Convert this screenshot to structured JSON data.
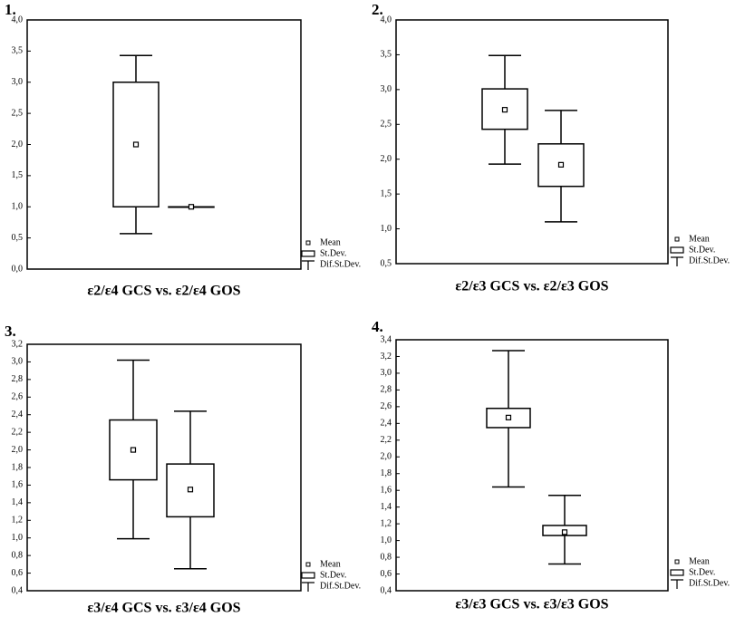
{
  "chart_data": [
    {
      "type": "box",
      "title": "1.",
      "xlabel": "ε2/ε4 GCS vs. ε2/ε4 GOS",
      "legend": [
        "Mean",
        "St.Dev.",
        "Dif.St.Dev."
      ],
      "ylim": [
        0,
        4
      ],
      "yticks": [
        {
          "value": 0,
          "label": "0,0"
        },
        {
          "value": 0.5,
          "label": "0,5"
        },
        {
          "value": 1,
          "label": "1,0"
        },
        {
          "value": 1.5,
          "label": "1,5"
        },
        {
          "value": 2,
          "label": "2,0"
        },
        {
          "value": 2.5,
          "label": "2,5"
        },
        {
          "value": 3,
          "label": "3,0"
        },
        {
          "value": 3.5,
          "label": "3,5"
        },
        {
          "value": 4,
          "label": "4,0"
        }
      ],
      "boxes": [
        {
          "mean": 2.0,
          "sd_low": 1.0,
          "sd_high": 3.0,
          "whisker_low": 0.57,
          "whisker_high": 3.43
        },
        {
          "mean": 1.0,
          "sd_low": 1.0,
          "sd_high": 1.0,
          "whisker_low": 1.0,
          "whisker_high": 1.0
        }
      ]
    },
    {
      "type": "box",
      "title": "2.",
      "xlabel": "ε2/ε3 GCS vs. ε2/ε3 GOS",
      "legend": [
        "Mean",
        "St.Dev.",
        "Dif.St.Dev."
      ],
      "ylim": [
        0.5,
        4
      ],
      "yticks": [
        {
          "value": 0.5,
          "label": "0,5"
        },
        {
          "value": 1,
          "label": "1,0"
        },
        {
          "value": 1.5,
          "label": "1,5"
        },
        {
          "value": 2,
          "label": "2,0"
        },
        {
          "value": 2.5,
          "label": "2,5"
        },
        {
          "value": 3,
          "label": "3,0"
        },
        {
          "value": 3.5,
          "label": "3,5"
        },
        {
          "value": 4,
          "label": "4,0"
        }
      ],
      "boxes": [
        {
          "mean": 2.71,
          "sd_low": 2.43,
          "sd_high": 3.01,
          "whisker_low": 1.93,
          "whisker_high": 3.49
        },
        {
          "mean": 1.92,
          "sd_low": 1.61,
          "sd_high": 2.22,
          "whisker_low": 1.1,
          "whisker_high": 2.7
        }
      ]
    },
    {
      "type": "box",
      "title": "3.",
      "xlabel": "ε3/ε4 GCS vs. ε3/ε4 GOS",
      "legend": [
        "Mean",
        "St.Dev.",
        "Dif.St.Dev."
      ],
      "ylim": [
        0.4,
        3.2
      ],
      "yticks": [
        {
          "value": 0.4,
          "label": "0,4"
        },
        {
          "value": 0.6,
          "label": "0,6"
        },
        {
          "value": 0.8,
          "label": "0,8"
        },
        {
          "value": 1.0,
          "label": "1,0"
        },
        {
          "value": 1.2,
          "label": "1,2"
        },
        {
          "value": 1.4,
          "label": "1,4"
        },
        {
          "value": 1.6,
          "label": "1,6"
        },
        {
          "value": 1.8,
          "label": "1,8"
        },
        {
          "value": 2.0,
          "label": "2,0"
        },
        {
          "value": 2.2,
          "label": "2,2"
        },
        {
          "value": 2.4,
          "label": "2,4"
        },
        {
          "value": 2.6,
          "label": "2,6"
        },
        {
          "value": 2.8,
          "label": "2,8"
        },
        {
          "value": 3.0,
          "label": "3,0"
        },
        {
          "value": 3.2,
          "label": "3,2"
        }
      ],
      "boxes": [
        {
          "mean": 2.0,
          "sd_low": 1.66,
          "sd_high": 2.34,
          "whisker_low": 0.99,
          "whisker_high": 3.02
        },
        {
          "mean": 1.55,
          "sd_low": 1.24,
          "sd_high": 1.84,
          "whisker_low": 0.65,
          "whisker_high": 2.44
        }
      ]
    },
    {
      "type": "box",
      "title": "4.",
      "xlabel": "ε3/ε3 GCS vs. ε3/ε3 GOS",
      "legend": [
        "Mean",
        "St.Dev.",
        "Dif.St.Dev."
      ],
      "ylim": [
        0.4,
        3.4
      ],
      "yticks": [
        {
          "value": 0.4,
          "label": "0,4"
        },
        {
          "value": 0.6,
          "label": "0,6"
        },
        {
          "value": 0.8,
          "label": "0,8"
        },
        {
          "value": 1.0,
          "label": "1,0"
        },
        {
          "value": 1.2,
          "label": "1,2"
        },
        {
          "value": 1.4,
          "label": "1,4"
        },
        {
          "value": 1.6,
          "label": "1,6"
        },
        {
          "value": 1.8,
          "label": "1,8"
        },
        {
          "value": 2.0,
          "label": "2,0"
        },
        {
          "value": 2.2,
          "label": "2,2"
        },
        {
          "value": 2.4,
          "label": "2,4"
        },
        {
          "value": 2.6,
          "label": "2,6"
        },
        {
          "value": 2.8,
          "label": "2,8"
        },
        {
          "value": 3.0,
          "label": "3,0"
        },
        {
          "value": 3.2,
          "label": "3,2"
        },
        {
          "value": 3.4,
          "label": "3,4"
        }
      ],
      "boxes": [
        {
          "mean": 2.47,
          "sd_low": 2.35,
          "sd_high": 2.58,
          "whisker_low": 1.64,
          "whisker_high": 3.27
        },
        {
          "mean": 1.1,
          "sd_low": 1.06,
          "sd_high": 1.18,
          "whisker_low": 0.72,
          "whisker_high": 1.54
        }
      ]
    }
  ]
}
